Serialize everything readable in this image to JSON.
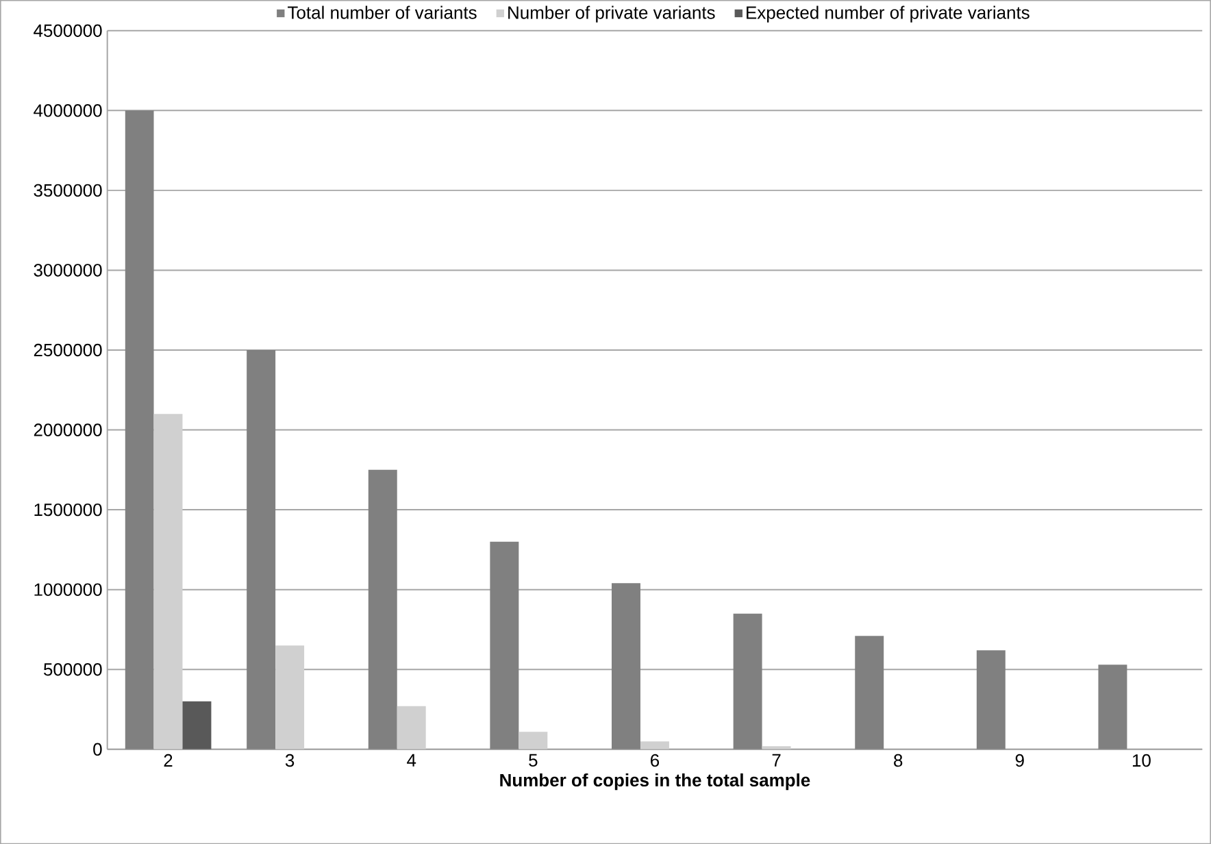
{
  "chart_data": {
    "type": "bar",
    "xlabel": "Number of copies in the total sample",
    "categories": [
      "2",
      "3",
      "4",
      "5",
      "6",
      "7",
      "8",
      "9",
      "10"
    ],
    "series": [
      {
        "name": "Total number of variants",
        "color": "#808080",
        "values": [
          4000000,
          2500000,
          1750000,
          1300000,
          1040000,
          850000,
          710000,
          620000,
          530000
        ]
      },
      {
        "name": "Number of private variants",
        "color": "#d0d0d0",
        "values": [
          2100000,
          650000,
          270000,
          110000,
          50000,
          20000,
          null,
          null,
          null
        ]
      },
      {
        "name": "Expected number of private variants",
        "color": "#595959",
        "values": [
          300000,
          null,
          0,
          0,
          0,
          0,
          0,
          0,
          0
        ]
      }
    ],
    "ylim": [
      0,
      4500000
    ],
    "yticks": [
      0,
      500000,
      1000000,
      1500000,
      2000000,
      2500000,
      3000000,
      3500000,
      4000000,
      4500000
    ],
    "grid": "y",
    "legend": "top"
  }
}
